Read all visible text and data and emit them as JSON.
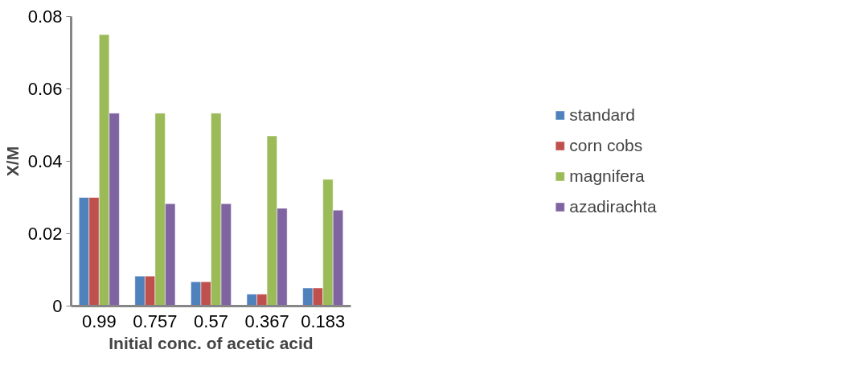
{
  "chart_data": {
    "type": "bar",
    "xlabel": "Initial conc. of acetic acid",
    "ylabel": "X/M",
    "categories": [
      "0.99",
      "0.757",
      "0.57",
      "0.367",
      "0.183"
    ],
    "series": [
      {
        "name": "standard",
        "color": "#4f81bd",
        "values": [
          0.03,
          0.0083,
          0.0067,
          0.0033,
          0.005
        ]
      },
      {
        "name": "corn cobs",
        "color": "#c0504d",
        "values": [
          0.03,
          0.0083,
          0.0067,
          0.0033,
          0.005
        ]
      },
      {
        "name": "magnifera",
        "color": "#9bbb59",
        "values": [
          0.075,
          0.0533,
          0.0533,
          0.047,
          0.035
        ]
      },
      {
        "name": "azadirachta",
        "color": "#8064a2",
        "values": [
          0.0533,
          0.0283,
          0.0283,
          0.027,
          0.0265
        ]
      }
    ],
    "ylim": [
      0,
      0.08
    ],
    "yticks": [
      0,
      0.02,
      0.04,
      0.06,
      0.08
    ],
    "grid": false,
    "legend": "right"
  }
}
